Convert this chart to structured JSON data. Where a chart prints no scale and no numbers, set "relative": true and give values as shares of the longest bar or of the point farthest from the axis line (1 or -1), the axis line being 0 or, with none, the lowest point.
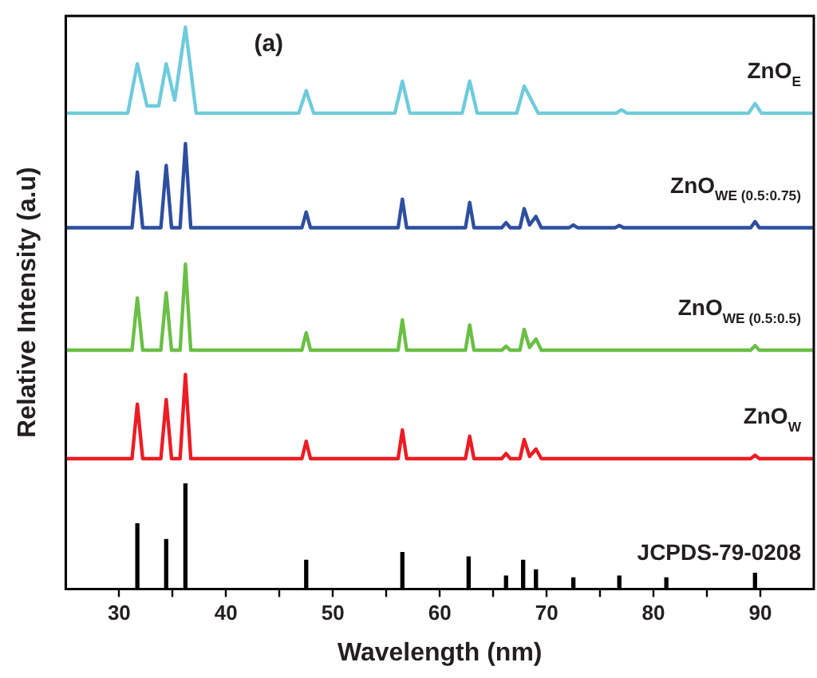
{
  "chart_data": {
    "type": "line",
    "relative": true,
    "xlabel": "Wavelength (nm)",
    "ylabel": "Relative Intensity (a.u)",
    "annotations": [
      "(a)"
    ],
    "xlim": [
      25,
      95
    ],
    "xticks": [
      30,
      {
        "value": 35,
        "label": null
      },
      40,
      {
        "value": 45,
        "label": null
      },
      50,
      {
        "value": 55,
        "label": null
      },
      60,
      {
        "value": 65,
        "label": null
      },
      70,
      {
        "value": 75,
        "label": null
      },
      80,
      {
        "value": 85,
        "label": null
      },
      90
    ],
    "grid": false,
    "legend": false,
    "marker": "none",
    "series": [
      {
        "name": "ZnO$_{E}$",
        "color": "#6fcbdc",
        "x": [
          25,
          30.8,
          31.7,
          32.6,
          33.7,
          34.4,
          35.2,
          36.2,
          37.2,
          46.8,
          47.5,
          48.2,
          55.8,
          56.5,
          57.2,
          62.1,
          62.8,
          63.5,
          67.2,
          67.9,
          69.2,
          76.5,
          77,
          77.5,
          88.9,
          89.5,
          90.1,
          95
        ],
        "values": [
          0.847,
          0.847,
          0.935,
          0.86,
          0.86,
          0.935,
          0.87,
          1.0,
          0.847,
          0.847,
          0.887,
          0.847,
          0.847,
          0.904,
          0.847,
          0.847,
          0.904,
          0.847,
          0.847,
          0.895,
          0.847,
          0.847,
          0.853,
          0.847,
          0.847,
          0.864,
          0.847,
          0.847
        ]
      },
      {
        "name": "ZnO$_{WE (0.5:0.75)}$",
        "color": "#2e4fa0",
        "x": [
          25,
          31.2,
          31.7,
          32.2,
          33.9,
          34.4,
          34.9,
          35.7,
          36.2,
          36.7,
          47.1,
          47.5,
          47.9,
          56.1,
          56.5,
          56.9,
          62.4,
          62.8,
          63.2,
          65.8,
          66.2,
          66.6,
          67.5,
          67.9,
          68.4,
          69,
          69.5,
          72.1,
          72.5,
          72.9,
          76.4,
          76.8,
          77.2,
          89.1,
          89.5,
          89.9,
          95
        ],
        "values": [
          0.643,
          0.643,
          0.742,
          0.643,
          0.643,
          0.754,
          0.643,
          0.643,
          0.793,
          0.643,
          0.643,
          0.671,
          0.643,
          0.643,
          0.694,
          0.643,
          0.643,
          0.688,
          0.643,
          0.643,
          0.652,
          0.643,
          0.643,
          0.677,
          0.648,
          0.663,
          0.643,
          0.643,
          0.648,
          0.643,
          0.643,
          0.647,
          0.643,
          0.643,
          0.654,
          0.643,
          0.643
        ]
      },
      {
        "name": "ZnO$_{WE (0.5:0.5)}$",
        "color": "#6abf45",
        "x": [
          25,
          31.2,
          31.7,
          32.2,
          33.9,
          34.4,
          34.9,
          35.7,
          36.2,
          36.7,
          47.1,
          47.5,
          47.9,
          56.1,
          56.5,
          56.9,
          62.4,
          62.8,
          63.2,
          65.8,
          66.2,
          66.6,
          67.5,
          67.9,
          68.4,
          69,
          69.5,
          89.1,
          89.5,
          89.9,
          95
        ],
        "values": [
          0.425,
          0.425,
          0.518,
          0.425,
          0.425,
          0.527,
          0.425,
          0.425,
          0.578,
          0.425,
          0.425,
          0.456,
          0.425,
          0.425,
          0.479,
          0.425,
          0.425,
          0.47,
          0.425,
          0.425,
          0.432,
          0.425,
          0.425,
          0.462,
          0.43,
          0.445,
          0.425,
          0.425,
          0.433,
          0.425,
          0.425
        ]
      },
      {
        "name": "ZnO$_{W}$",
        "color": "#ed1c24",
        "x": [
          25,
          31.2,
          31.7,
          32.2,
          33.9,
          34.4,
          34.9,
          35.7,
          36.2,
          36.7,
          47.1,
          47.5,
          47.9,
          56.1,
          56.5,
          56.9,
          62.4,
          62.8,
          63.2,
          65.8,
          66.2,
          66.6,
          67.5,
          67.9,
          68.4,
          69,
          69.5,
          89.1,
          89.5,
          89.9,
          95
        ],
        "values": [
          0.232,
          0.232,
          0.329,
          0.232,
          0.232,
          0.337,
          0.232,
          0.232,
          0.382,
          0.232,
          0.232,
          0.263,
          0.232,
          0.232,
          0.283,
          0.232,
          0.232,
          0.272,
          0.232,
          0.232,
          0.241,
          0.232,
          0.232,
          0.266,
          0.236,
          0.249,
          0.232,
          0.232,
          0.238,
          0.232,
          0.232
        ]
      },
      {
        "name": "JCPDS-79-0208",
        "type": "bar",
        "color": "#000000",
        "x": [
          31.7,
          34.4,
          36.2,
          47.5,
          56.5,
          62.7,
          66.2,
          67.8,
          69,
          72.5,
          76.8,
          81.2,
          89.5
        ],
        "values": [
          0.116,
          0.088,
          0.187,
          0.051,
          0.065,
          0.057,
          0.023,
          0.051,
          0.034,
          0.02,
          0.023,
          0.02,
          0.028
        ]
      }
    ]
  }
}
